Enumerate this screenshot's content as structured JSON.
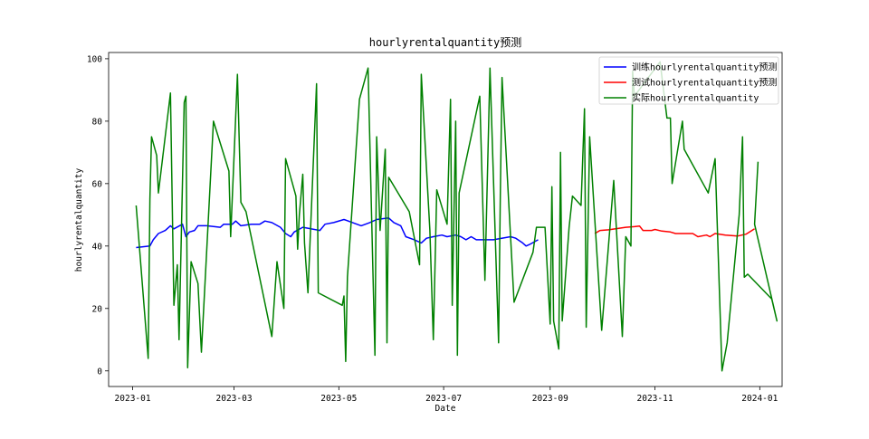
{
  "chart_data": {
    "type": "line",
    "title": "hourlyrentalquantity预测",
    "xlabel": "Date",
    "ylabel": "hourlyrentalquantity",
    "xlim": [
      "2022-12-18",
      "2024-01-14"
    ],
    "ylim": [
      -5,
      102
    ],
    "x_ticks": [
      "2023-01",
      "2023-03",
      "2023-05",
      "2023-07",
      "2023-09",
      "2023-11",
      "2024-01"
    ],
    "x_tick_dates": [
      "2023-01-01",
      "2023-03-01",
      "2023-05-01",
      "2023-07-01",
      "2023-09-01",
      "2023-11-01",
      "2024-01-01"
    ],
    "y_ticks": [
      0,
      20,
      40,
      60,
      80,
      100
    ],
    "grid": false,
    "legend_position": "top-right",
    "series": [
      {
        "name": "训练hourlyrentalquantity预测",
        "color": "#0000ff",
        "points": [
          [
            "2023-01-03",
            39.5
          ],
          [
            "2023-01-11",
            40
          ],
          [
            "2023-01-13",
            42
          ],
          [
            "2023-01-16",
            44
          ],
          [
            "2023-01-20",
            45
          ],
          [
            "2023-01-23",
            46.5
          ],
          [
            "2023-01-25",
            45.5
          ],
          [
            "2023-01-30",
            47
          ],
          [
            "2023-02-01",
            43
          ],
          [
            "2023-02-03",
            44.5
          ],
          [
            "2023-02-06",
            45
          ],
          [
            "2023-02-08",
            46.5
          ],
          [
            "2023-02-13",
            46.5
          ],
          [
            "2023-02-21",
            46
          ],
          [
            "2023-02-23",
            47
          ],
          [
            "2023-02-28",
            47
          ],
          [
            "2023-03-02",
            48
          ],
          [
            "2023-03-05",
            46.5
          ],
          [
            "2023-03-11",
            47
          ],
          [
            "2023-03-16",
            47
          ],
          [
            "2023-03-19",
            48
          ],
          [
            "2023-03-23",
            47.5
          ],
          [
            "2023-03-28",
            46
          ],
          [
            "2023-03-31",
            44
          ],
          [
            "2023-04-03",
            43
          ],
          [
            "2023-04-05",
            44.5
          ],
          [
            "2023-04-10",
            46
          ],
          [
            "2023-04-20",
            45
          ],
          [
            "2023-04-23",
            47
          ],
          [
            "2023-04-28",
            47.5
          ],
          [
            "2023-05-04",
            48.5
          ],
          [
            "2023-05-09",
            47.5
          ],
          [
            "2023-05-14",
            46.5
          ],
          [
            "2023-05-19",
            47.5
          ],
          [
            "2023-05-23",
            48.5
          ],
          [
            "2023-05-30",
            49
          ],
          [
            "2023-06-02",
            47.5
          ],
          [
            "2023-06-06",
            46.5
          ],
          [
            "2023-06-09",
            43
          ],
          [
            "2023-06-14",
            42
          ],
          [
            "2023-06-18",
            41
          ],
          [
            "2023-06-21",
            42.5
          ],
          [
            "2023-06-25",
            43
          ],
          [
            "2023-06-30",
            43.5
          ],
          [
            "2023-07-03",
            43
          ],
          [
            "2023-07-08",
            43.5
          ],
          [
            "2023-07-11",
            43
          ],
          [
            "2023-07-14",
            42
          ],
          [
            "2023-07-17",
            43
          ],
          [
            "2023-07-20",
            42
          ],
          [
            "2023-07-30",
            42
          ],
          [
            "2023-08-09",
            43
          ],
          [
            "2023-08-12",
            42.5
          ],
          [
            "2023-08-16",
            41
          ],
          [
            "2023-08-18",
            40
          ],
          [
            "2023-08-20",
            40.5
          ],
          [
            "2023-08-25",
            42
          ]
        ]
      },
      {
        "name": "测试hourlyrentalquantity预测",
        "color": "#ff0000",
        "points": [
          [
            "2023-09-27",
            44
          ],
          [
            "2023-09-30",
            45
          ],
          [
            "2023-10-05",
            45.2
          ],
          [
            "2023-10-10",
            45.6
          ],
          [
            "2023-10-15",
            46
          ],
          [
            "2023-10-20",
            46.2
          ],
          [
            "2023-10-23",
            46.4
          ],
          [
            "2023-10-25",
            45
          ],
          [
            "2023-10-30",
            45
          ],
          [
            "2023-11-01",
            45.3
          ],
          [
            "2023-11-05",
            44.8
          ],
          [
            "2023-11-10",
            44.5
          ],
          [
            "2023-11-13",
            44
          ],
          [
            "2023-11-18",
            44
          ],
          [
            "2023-11-23",
            44
          ],
          [
            "2023-11-26",
            43
          ],
          [
            "2023-12-01",
            43.5
          ],
          [
            "2023-12-03",
            43
          ],
          [
            "2023-12-06",
            44
          ],
          [
            "2023-12-12",
            43.5
          ],
          [
            "2023-12-19",
            43.2
          ],
          [
            "2023-12-24",
            43.8
          ],
          [
            "2023-12-29",
            45.5
          ]
        ]
      },
      {
        "name": "实际hourlyrentalquantity",
        "color": "#008000",
        "points": [
          [
            "2023-01-03",
            53
          ],
          [
            "2023-01-10",
            4
          ],
          [
            "2023-01-11",
            55
          ],
          [
            "2023-01-12",
            75
          ],
          [
            "2023-01-15",
            69
          ],
          [
            "2023-01-16",
            57
          ],
          [
            "2023-01-23",
            89
          ],
          [
            "2023-01-25",
            21
          ],
          [
            "2023-01-27",
            34
          ],
          [
            "2023-01-28",
            10
          ],
          [
            "2023-01-31",
            86
          ],
          [
            "2023-02-01",
            88
          ],
          [
            "2023-02-02",
            1
          ],
          [
            "2023-02-04",
            35
          ],
          [
            "2023-02-08",
            28
          ],
          [
            "2023-02-10",
            6
          ],
          [
            "2023-02-17",
            80
          ],
          [
            "2023-02-26",
            64
          ],
          [
            "2023-02-27",
            43
          ],
          [
            "2023-03-01",
            69
          ],
          [
            "2023-03-03",
            95
          ],
          [
            "2023-03-05",
            54
          ],
          [
            "2023-03-08",
            51
          ],
          [
            "2023-03-23",
            11
          ],
          [
            "2023-03-26",
            35
          ],
          [
            "2023-03-30",
            20
          ],
          [
            "2023-03-31",
            68
          ],
          [
            "2023-04-04",
            60
          ],
          [
            "2023-04-06",
            56
          ],
          [
            "2023-04-07",
            39
          ],
          [
            "2023-04-08",
            50
          ],
          [
            "2023-04-10",
            63
          ],
          [
            "2023-04-11",
            41
          ],
          [
            "2023-04-13",
            25
          ],
          [
            "2023-04-18",
            92
          ],
          [
            "2023-04-19",
            25
          ],
          [
            "2023-05-03",
            21
          ],
          [
            "2023-05-04",
            24
          ],
          [
            "2023-05-05",
            3
          ],
          [
            "2023-05-06",
            30
          ],
          [
            "2023-05-13",
            87
          ],
          [
            "2023-05-18",
            97
          ],
          [
            "2023-05-22",
            5
          ],
          [
            "2023-05-23",
            75
          ],
          [
            "2023-05-25",
            45
          ],
          [
            "2023-05-28",
            71
          ],
          [
            "2023-05-29",
            9
          ],
          [
            "2023-05-30",
            62
          ],
          [
            "2023-06-11",
            51
          ],
          [
            "2023-06-17",
            34
          ],
          [
            "2023-06-18",
            95
          ],
          [
            "2023-06-23",
            45
          ],
          [
            "2023-06-25",
            10
          ],
          [
            "2023-06-27",
            58
          ],
          [
            "2023-07-03",
            47
          ],
          [
            "2023-07-05",
            87
          ],
          [
            "2023-07-06",
            21
          ],
          [
            "2023-07-08",
            80
          ],
          [
            "2023-07-09",
            5
          ],
          [
            "2023-07-10",
            57
          ],
          [
            "2023-07-22",
            88
          ],
          [
            "2023-07-25",
            29
          ],
          [
            "2023-07-28",
            97
          ],
          [
            "2023-08-02",
            9
          ],
          [
            "2023-08-03",
            56
          ],
          [
            "2023-08-04",
            94
          ],
          [
            "2023-08-11",
            22
          ],
          [
            "2023-08-22",
            38
          ],
          [
            "2023-08-24",
            46
          ],
          [
            "2023-08-29",
            46
          ],
          [
            "2023-09-01",
            15
          ],
          [
            "2023-09-02",
            59
          ],
          [
            "2023-09-03",
            16
          ],
          [
            "2023-09-06",
            7
          ],
          [
            "2023-09-07",
            70
          ],
          [
            "2023-09-08",
            16
          ],
          [
            "2023-09-12",
            46
          ],
          [
            "2023-09-14",
            56
          ],
          [
            "2023-09-19",
            53
          ],
          [
            "2023-09-21",
            84
          ],
          [
            "2023-09-22",
            14
          ],
          [
            "2023-09-24",
            75
          ],
          [
            "2023-10-01",
            13
          ],
          [
            "2023-10-08",
            61
          ],
          [
            "2023-10-13",
            11
          ],
          [
            "2023-10-15",
            43
          ],
          [
            "2023-10-18",
            40
          ],
          [
            "2023-10-19",
            96
          ],
          [
            "2023-10-20",
            88
          ],
          [
            "2023-11-04",
            99
          ],
          [
            "2023-11-08",
            81
          ],
          [
            "2023-11-10",
            81
          ],
          [
            "2023-11-11",
            60
          ],
          [
            "2023-11-17",
            80
          ],
          [
            "2023-11-18",
            71
          ],
          [
            "2023-12-02",
            57
          ],
          [
            "2023-12-06",
            68
          ],
          [
            "2023-12-10",
            0
          ],
          [
            "2023-12-13",
            9
          ],
          [
            "2023-12-20",
            50
          ],
          [
            "2023-12-22",
            75
          ],
          [
            "2023-12-23",
            30
          ],
          [
            "2023-12-25",
            31
          ],
          [
            "2024-01-08",
            23
          ],
          [
            "2024-01-11",
            16
          ],
          [
            "2023-12-29",
            47
          ],
          [
            "2023-12-31",
            67
          ]
        ]
      }
    ]
  }
}
